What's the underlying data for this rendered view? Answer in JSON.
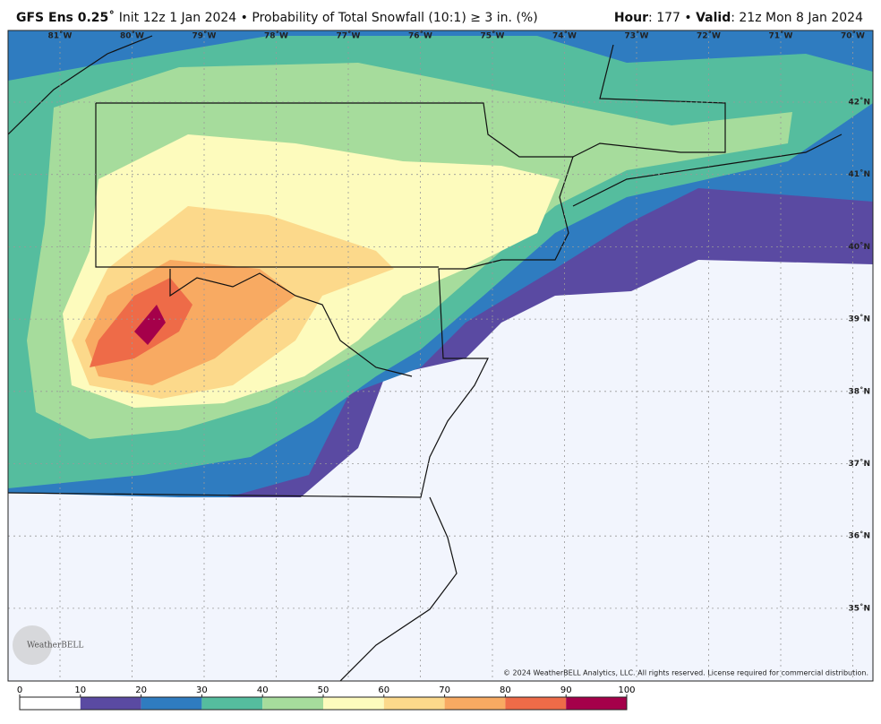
{
  "header": {
    "model": "GFS Ens 0.25˚",
    "description": "Init 12z 1 Jan 2024 • Probability of Total Snowfall (10:1) ≥ 3 in. (%)",
    "hour_label": "Hour",
    "hour_value": ": 177 • ",
    "valid_label": "Valid",
    "valid_value": ": 21z Mon 8 Jan 2024"
  },
  "map": {
    "longitudes": [
      "81˚W",
      "80˚W",
      "79˚W",
      "78˚W",
      "77˚W",
      "76˚W",
      "75˚W",
      "74˚W",
      "73˚W",
      "72˚W",
      "71˚W",
      "70˚W"
    ],
    "latitudes": [
      "42˚N",
      "41˚N",
      "40˚N",
      "39˚N",
      "38˚N",
      "37˚N",
      "36˚N",
      "35˚N"
    ],
    "copyright": "© 2024 WeatherBELL Analytics, LLC. All rights reserved. License required for commercial distribution.",
    "logo": "WeatherBELL"
  },
  "colorbar": {
    "ticks": [
      0,
      10,
      20,
      30,
      40,
      50,
      60,
      70,
      80,
      90,
      100
    ],
    "colors": [
      "#ffffff",
      "#5a4aa2",
      "#2f7cc0",
      "#55bd9e",
      "#a6dc9c",
      "#fdfbbd",
      "#fcd98b",
      "#f8aa62",
      "#ee6b48",
      "#a5004a"
    ]
  }
}
